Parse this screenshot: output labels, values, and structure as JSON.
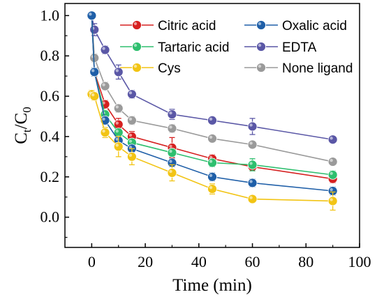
{
  "chart_data": {
    "type": "line",
    "xlabel": "Time (min)",
    "ylabel": {
      "main": "C",
      "sub1": "t",
      "slash": "/C",
      "sub2": "0"
    },
    "xlim": [
      -10,
      100
    ],
    "ylim": [
      -0.15,
      1.06
    ],
    "xticks": [
      "0",
      "20",
      "40",
      "60",
      "80",
      "100"
    ],
    "yticks": [
      "0.0",
      "0.2",
      "0.4",
      "0.6",
      "0.8",
      "1.0"
    ],
    "x": [
      0,
      1,
      5,
      10,
      15,
      30,
      45,
      60,
      90
    ],
    "legend_position": "top-right",
    "grid": false,
    "series": [
      {
        "name": "Citric acid",
        "color": "#d62020",
        "values": [
          1.0,
          0.72,
          0.56,
          0.46,
          0.4,
          0.345,
          0.29,
          0.25,
          0.19
        ],
        "errors": [
          0,
          0.02,
          0.02,
          0.03,
          0.025,
          0.05,
          0.02,
          0.02,
          0.02
        ]
      },
      {
        "name": "Oxalic acid",
        "color": "#1f5fa8",
        "values": [
          1.0,
          0.72,
          0.48,
          0.38,
          0.34,
          0.27,
          0.2,
          0.17,
          0.13
        ],
        "errors": [
          0,
          0.02,
          0.02,
          0.02,
          0.02,
          0.02,
          0.02,
          0.02,
          0.02
        ]
      },
      {
        "name": "Tartaric acid",
        "color": "#2ebf6e",
        "values": [
          1.0,
          0.72,
          0.51,
          0.42,
          0.37,
          0.32,
          0.27,
          0.26,
          0.21
        ],
        "errors": [
          0,
          0.02,
          0.02,
          0.02,
          0.02,
          0.02,
          0.02,
          0.03,
          0.02
        ]
      },
      {
        "name": "EDTA",
        "color": "#5a57a6",
        "values": [
          1.0,
          0.93,
          0.83,
          0.72,
          0.61,
          0.51,
          0.48,
          0.45,
          0.385
        ],
        "errors": [
          0,
          0.03,
          0.02,
          0.035,
          0.02,
          0.025,
          0.015,
          0.04,
          0.015
        ]
      },
      {
        "name": "Cys",
        "color": "#f2c414",
        "values": [
          0.61,
          0.6,
          0.42,
          0.35,
          0.3,
          0.22,
          0.14,
          0.09,
          0.08
        ],
        "errors": [
          0.02,
          0.02,
          0.025,
          0.05,
          0.04,
          0.04,
          0.025,
          0.015,
          0.045
        ]
      },
      {
        "name": "None ligand",
        "color": "#9a9a9a",
        "values": [
          1.0,
          0.79,
          0.65,
          0.54,
          0.48,
          0.44,
          0.39,
          0.36,
          0.275
        ],
        "errors": [
          0,
          0.02,
          0.02,
          0.02,
          0.02,
          0.02,
          0.015,
          0.015,
          0.015
        ]
      }
    ]
  }
}
